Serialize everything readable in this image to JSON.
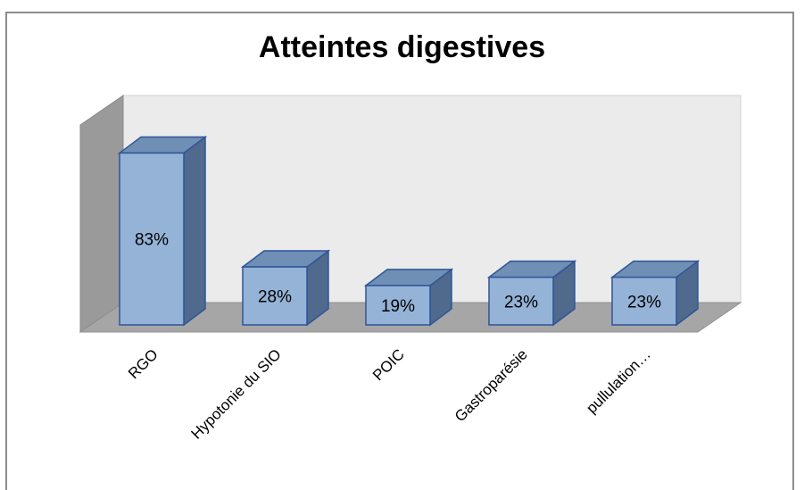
{
  "chart_data": {
    "type": "bar",
    "title": "Atteintes digestives",
    "categories": [
      "RGO",
      "Hypotonie du SIO",
      "POIC",
      "Gastroparésie",
      "pullulation…"
    ],
    "series": [
      {
        "values": [
          83,
          28,
          19,
          23,
          23
        ]
      }
    ],
    "data_labels": [
      "83%",
      "28%",
      "19%",
      "23%",
      "23%"
    ],
    "ylim": [
      0,
      100
    ],
    "y_unit": "%",
    "three_d": true,
    "grid": false,
    "legend": "none",
    "colors": {
      "bar_front": "#95b3d7",
      "bar_top": "#6f8fb4",
      "bar_side": "#4f6a8c",
      "bar_edge": "#2f5597",
      "back_wall": "#ebebeb",
      "side_wall": "#9a9a9a",
      "floor": "#a6a6a6"
    }
  }
}
